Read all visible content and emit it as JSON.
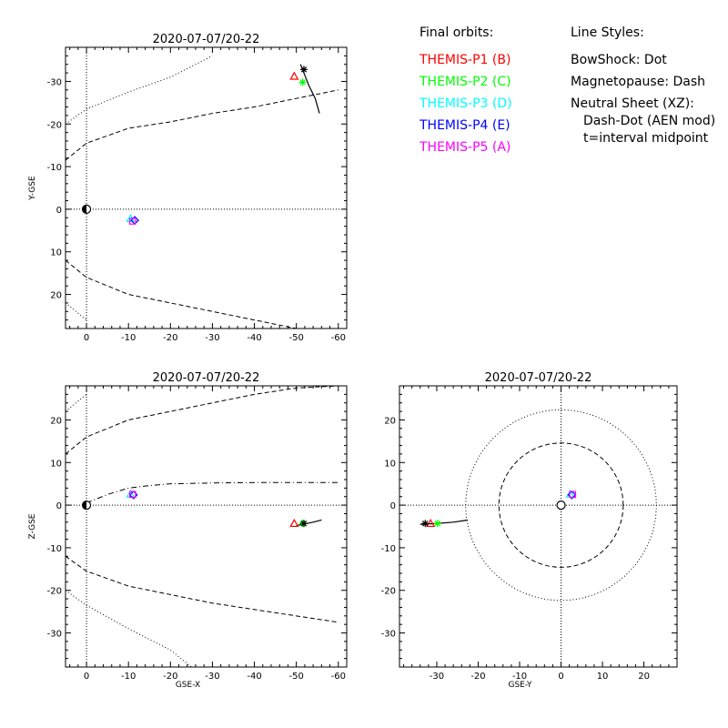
{
  "legend": {
    "orbits_title": "Final orbits:",
    "probes": [
      {
        "label": "THEMIS-P1 (B)",
        "color": "#ff0000"
      },
      {
        "label": "THEMIS-P2 (C)",
        "color": "#00ff00"
      },
      {
        "label": "THEMIS-P3 (D)",
        "color": "#00ffff"
      },
      {
        "label": "THEMIS-P4 (E)",
        "color": "#0000ff"
      },
      {
        "label": "THEMIS-P5 (A)",
        "color": "#ff00ff"
      }
    ],
    "styles_title": "Line Styles:",
    "styles": [
      "BowShock: Dot",
      "Magnetopause: Dash",
      "Neutral Sheet (XZ):",
      "Dash-Dot (AEN mod)",
      "t=interval midpoint"
    ]
  },
  "chart_data": [
    {
      "type": "scatter",
      "title": "2020-07-07/20-22",
      "xlabel": "",
      "ylabel": "Y-GSE",
      "xlim": [
        5,
        -62
      ],
      "ylim": [
        28,
        -38
      ],
      "xticks": [
        0,
        -10,
        -20,
        -30,
        -40,
        -50,
        -60
      ],
      "xtick_labels": [
        "0",
        "-10",
        "-20",
        "-30",
        "-40",
        "-50",
        "-60"
      ],
      "yticks": [
        -30,
        -20,
        -10,
        0,
        10,
        20
      ],
      "ytick_labels": [
        "-30",
        "-20",
        "-10",
        "0",
        "10",
        "20"
      ],
      "probes": [
        {
          "probe": "P1",
          "symbol": "triangle",
          "color": "#ff0000",
          "x": -49.5,
          "y": -31.2
        },
        {
          "probe": "P2",
          "symbol": "star",
          "color": "#00ff00",
          "x": -51.5,
          "y": -29.8
        },
        {
          "probe": "P3",
          "symbol": "triangle",
          "color": "#00ffff",
          "x": -10.5,
          "y": 2.2
        },
        {
          "probe": "P4",
          "symbol": "diamond",
          "color": "#0000ff",
          "x": -11.5,
          "y": 2.6
        },
        {
          "probe": "P5",
          "symbol": "square",
          "color": "#ff00ff",
          "x": -11.0,
          "y": 2.8
        },
        {
          "probe": "P1-end",
          "symbol": "star",
          "color": "#000000",
          "x": -51.8,
          "y": -32.8
        }
      ],
      "track": {
        "x": [
          -51,
          -52,
          -53,
          -54.5,
          -55.5
        ],
        "y": [
          -34,
          -31.5,
          -29,
          -26,
          -22.5
        ]
      },
      "bow_shock": {
        "style": "dot",
        "x": [
          5,
          0,
          -10,
          -20,
          -30
        ],
        "y": [
          -20,
          -23.5,
          -27.5,
          -31,
          -36
        ]
      },
      "magnetopause_upper": {
        "style": "dash",
        "x": [
          5,
          0,
          -10,
          -20,
          -30,
          -40,
          -50,
          -60
        ],
        "y": [
          -11.5,
          -15.5,
          -19,
          -20.5,
          -22.5,
          -24,
          -26,
          -28
        ]
      },
      "magnetopause_lower": {
        "style": "dash",
        "x": [
          5,
          0,
          -10,
          -20,
          -30,
          -40,
          -50
        ],
        "y": [
          12,
          16,
          20,
          22,
          24,
          26,
          28
        ]
      },
      "bow_shock_lower": {
        "style": "dot",
        "x": [
          5,
          0
        ],
        "y": [
          22,
          26
        ]
      }
    },
    {
      "type": "scatter",
      "title": "2020-07-07/20-22",
      "xlabel": "GSE-X",
      "ylabel": "Z-GSE",
      "xlim": [
        5,
        -62
      ],
      "ylim": [
        -38,
        28
      ],
      "xticks": [
        0,
        -10,
        -20,
        -30,
        -40,
        -50,
        -60
      ],
      "xtick_labels": [
        "0",
        "-10",
        "-20",
        "-30",
        "-40",
        "-50",
        "-60"
      ],
      "yticks": [
        -30,
        -20,
        -10,
        0,
        10,
        20
      ],
      "ytick_labels": [
        "-30",
        "-20",
        "-10",
        "0",
        "10",
        "20"
      ],
      "probes": [
        {
          "probe": "P1",
          "symbol": "triangle",
          "color": "#ff0000",
          "x": -49.5,
          "y": -4.3
        },
        {
          "probe": "P2",
          "symbol": "star",
          "color": "#00ff00",
          "x": -51.5,
          "y": -4.3
        },
        {
          "probe": "P3",
          "symbol": "triangle",
          "color": "#00ffff",
          "x": -10.5,
          "y": 2.6
        },
        {
          "probe": "P4",
          "symbol": "diamond",
          "color": "#0000ff",
          "x": -11.2,
          "y": 2.4
        },
        {
          "probe": "P5",
          "symbol": "square",
          "color": "#ff00ff",
          "x": -11.0,
          "y": 2.5
        },
        {
          "probe": "P1-end",
          "symbol": "star",
          "color": "#000000",
          "x": -51.8,
          "y": -4.3
        }
      ],
      "track": {
        "x": [
          -50,
          -52,
          -54,
          -56
        ],
        "y": [
          -4.8,
          -4.4,
          -4.0,
          -3.5
        ]
      },
      "bow_shock_upper": {
        "style": "dot",
        "x": [
          5,
          0
        ],
        "y": [
          22,
          26
        ]
      },
      "magnetopause_upper": {
        "style": "dash",
        "x": [
          5,
          0,
          -10,
          -20,
          -30,
          -40,
          -50,
          -60
        ],
        "y": [
          12,
          16,
          20,
          22,
          24,
          26,
          27.5,
          28
        ]
      },
      "magnetopause_lower": {
        "style": "dash",
        "x": [
          5,
          0,
          -10,
          -20,
          -30,
          -40,
          -50,
          -60
        ],
        "y": [
          -12,
          -15.5,
          -19,
          -21,
          -23,
          -24.5,
          -26,
          -27.5
        ]
      },
      "bow_shock_lower": {
        "style": "dot",
        "x": [
          5,
          0,
          -10,
          -20,
          -25
        ],
        "y": [
          -20,
          -23.5,
          -29,
          -34,
          -38
        ]
      },
      "neutral_sheet": {
        "style": "dashdot",
        "x": [
          0,
          -5,
          -10,
          -15,
          -20,
          -30,
          -40,
          -50,
          -60
        ],
        "y": [
          0.5,
          2.5,
          4.0,
          4.6,
          5.0,
          5.2,
          5.3,
          5.3,
          5.3
        ]
      }
    },
    {
      "type": "scatter",
      "title": "2020-07-07/20-22",
      "xlabel": "GSE-Y",
      "ylabel": "",
      "xlim": [
        -39,
        28
      ],
      "ylim": [
        -38,
        28
      ],
      "xticks": [
        -30,
        -20,
        -10,
        0,
        10,
        20
      ],
      "xtick_labels": [
        "-30",
        "-20",
        "-10",
        "0",
        "10",
        "20"
      ],
      "yticks": [
        -30,
        -20,
        -10,
        0,
        10,
        20
      ],
      "ytick_labels": [
        "-30",
        "-20",
        "-10",
        "0",
        "10",
        "20"
      ],
      "probes": [
        {
          "probe": "P1",
          "symbol": "triangle",
          "color": "#ff0000",
          "x": -31.5,
          "y": -4.3
        },
        {
          "probe": "P2",
          "symbol": "star",
          "color": "#00ff00",
          "x": -29.8,
          "y": -4.3
        },
        {
          "probe": "P3",
          "symbol": "triangle",
          "color": "#00ffff",
          "x": 2.2,
          "y": 2.6
        },
        {
          "probe": "P4",
          "symbol": "diamond",
          "color": "#0000ff",
          "x": 2.6,
          "y": 2.4
        },
        {
          "probe": "P5",
          "symbol": "square",
          "color": "#ff00ff",
          "x": 2.8,
          "y": 2.5
        },
        {
          "probe": "P1-end",
          "symbol": "star",
          "color": "#000000",
          "x": -32.8,
          "y": -4.3
        }
      ],
      "track": {
        "x": [
          -34,
          -30,
          -26,
          -22.5
        ],
        "y": [
          -4.5,
          -4.3,
          -4.0,
          -3.5
        ]
      },
      "bow_shock_radius": 23,
      "magnetopause_radius": 15
    }
  ]
}
